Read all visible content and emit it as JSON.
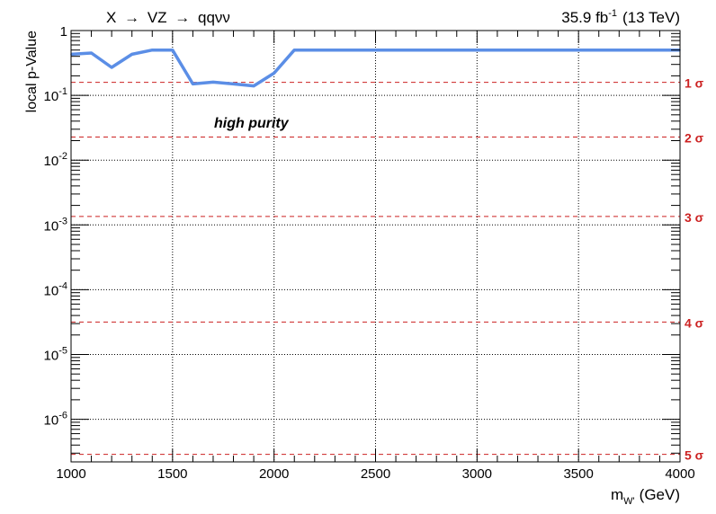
{
  "header": {
    "process_prefix": "X",
    "arrow": "→",
    "process_mid": "VZ",
    "process_suffix": "qqνν",
    "lumi_value": "35.9 fb",
    "lumi_exp": "-1",
    "energy": "(13 TeV)"
  },
  "annotation": "high purity",
  "axes": {
    "ylabel": "local p-Value",
    "xlabel_main": "m",
    "xlabel_sub": "W'",
    "xlabel_unit": "(GeV)",
    "x_ticks": [
      "1000",
      "1500",
      "2000",
      "2500",
      "3000",
      "3500",
      "4000"
    ],
    "y_ticks": [
      {
        "base": "1",
        "exp": ""
      },
      {
        "base": "10",
        "exp": "-1"
      },
      {
        "base": "10",
        "exp": "-2"
      },
      {
        "base": "10",
        "exp": "-3"
      },
      {
        "base": "10",
        "exp": "-4"
      },
      {
        "base": "10",
        "exp": "-5"
      },
      {
        "base": "10",
        "exp": "-6"
      }
    ]
  },
  "chart_data": {
    "type": "line",
    "xlim": [
      1000,
      4000
    ],
    "ylim": [
      2.2e-07,
      1.0
    ],
    "yscale": "log",
    "grid": true,
    "series": [
      {
        "color": "#5b8ee6",
        "x": [
          1000,
          1100,
          1200,
          1300,
          1400,
          1500,
          1600,
          1700,
          1800,
          1900,
          2000,
          2100,
          2500,
          3000,
          3500,
          4000
        ],
        "y": [
          0.43,
          0.45,
          0.27,
          0.43,
          0.5,
          0.5,
          0.15,
          0.16,
          0.15,
          0.14,
          0.22,
          0.5,
          0.5,
          0.5,
          0.5,
          0.5
        ]
      }
    ],
    "significance_lines": {
      "color": "#cc2222",
      "values": [
        0.1587,
        0.02275,
        0.00135,
        3.17e-05,
        2.87e-07
      ],
      "labels": [
        "1 σ",
        "2 σ",
        "3 σ",
        "4 σ",
        "5 σ"
      ]
    }
  }
}
